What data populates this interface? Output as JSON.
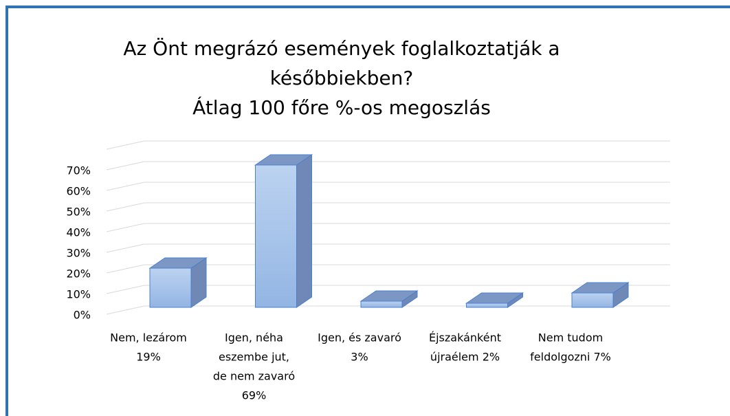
{
  "chart_data": {
    "type": "bar3d",
    "title": [
      "Az Önt megrázó események foglalkoztatják a",
      "későbbiekben?",
      "Átlag 100 főre %-os megoszlás"
    ],
    "categories": [
      [
        "Nem, lezárom",
        "19%"
      ],
      [
        "Igen, néha",
        "eszembe jut,",
        "de nem zavaró",
        "69%"
      ],
      [
        "Igen, és zavaró",
        "3%"
      ],
      [
        "Éjszakánként",
        "újraélem 2%"
      ],
      [
        "Nem tudom",
        "feldolgozni 7%"
      ]
    ],
    "values": [
      19,
      69,
      3,
      2,
      7
    ],
    "color": "#a9c6ec",
    "ylim": [
      0,
      80
    ],
    "yticks": [
      {
        "value": 0,
        "label": "0%"
      },
      {
        "value": 10,
        "label": "10%"
      },
      {
        "value": 20,
        "label": "20%"
      },
      {
        "value": 30,
        "label": "30%"
      },
      {
        "value": 40,
        "label": "40%"
      },
      {
        "value": 50,
        "label": "50%"
      },
      {
        "value": 60,
        "label": "60%"
      },
      {
        "value": 70,
        "label": "70%"
      }
    ],
    "grid": true
  }
}
